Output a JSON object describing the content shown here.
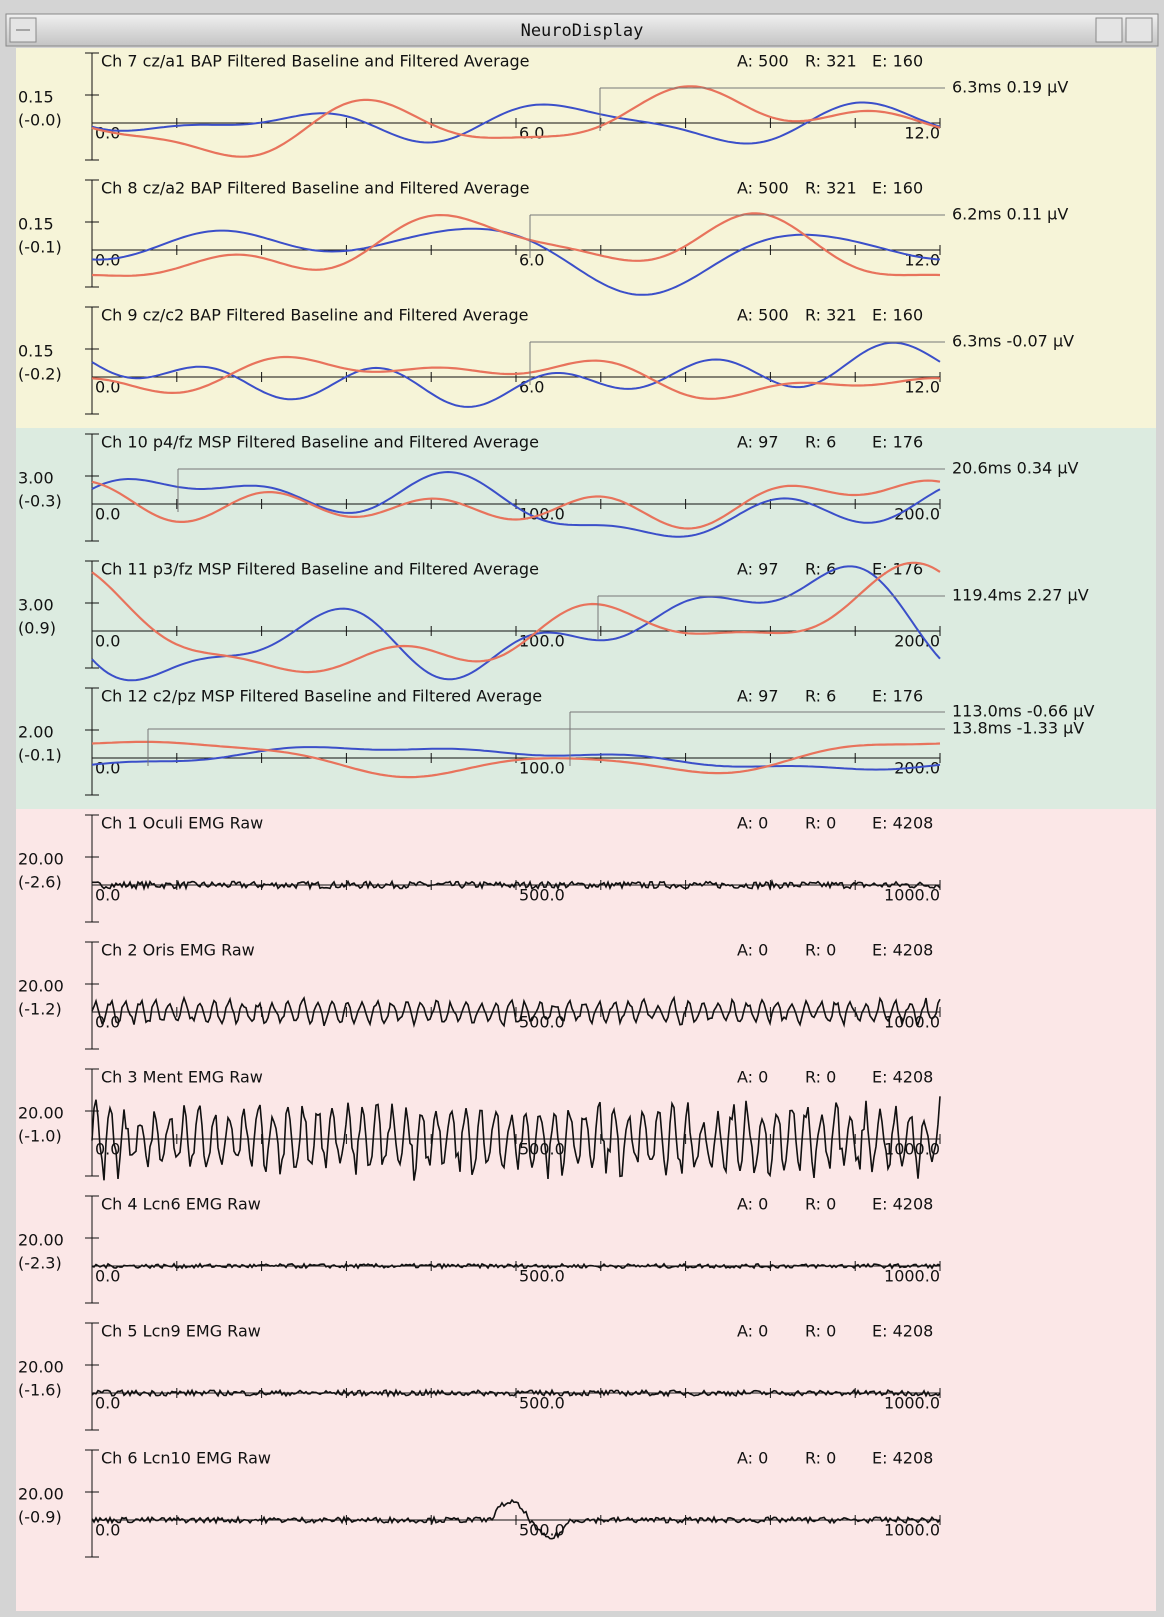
{
  "window": {
    "title": "NeuroDisplay"
  },
  "channels": [
    {
      "title": "Ch 7 cz/a1 BAP Filtered Baseline and Filtered Average",
      "stats": [
        "A: 500",
        "R: 321",
        "E: 160"
      ],
      "scale": "0.15",
      "offset": "(-0.0)",
      "x_labels": [
        "0.0",
        "6.0",
        "12.0"
      ],
      "cursors": [
        "6.3ms  0.19 µV"
      ]
    },
    {
      "title": "Ch 8 cz/a2 BAP Filtered Baseline and Filtered Average",
      "stats": [
        "A: 500",
        "R: 321",
        "E: 160"
      ],
      "scale": "0.15",
      "offset": "(-0.1)",
      "x_labels": [
        "0.0",
        "6.0",
        "12.0"
      ],
      "cursors": [
        "6.2ms  0.11 µV"
      ]
    },
    {
      "title": "Ch 9 cz/c2 BAP Filtered Baseline and Filtered Average",
      "stats": [
        "A: 500",
        "R: 321",
        "E: 160"
      ],
      "scale": "0.15",
      "offset": "(-0.2)",
      "x_labels": [
        "0.0",
        "6.0",
        "12.0"
      ],
      "cursors": [
        "6.3ms  -0.07 µV"
      ]
    },
    {
      "title": "Ch 10 p4/fz MSP Filtered Baseline and Filtered Average",
      "stats": [
        "A: 97",
        "R: 6",
        "E: 176"
      ],
      "scale": "3.00",
      "offset": "(-0.3)",
      "x_labels": [
        "0.0",
        "100.0",
        "200.0"
      ],
      "cursors": [
        "20.6ms  0.34 µV"
      ]
    },
    {
      "title": "Ch 11 p3/fz MSP Filtered Baseline and Filtered Average",
      "stats": [
        "A: 97",
        "R: 6",
        "E: 176"
      ],
      "scale": "3.00",
      "offset": "(0.9)",
      "x_labels": [
        "0.0",
        "100.0",
        "200.0"
      ],
      "cursors": [
        "119.4ms  2.27  µV"
      ]
    },
    {
      "title": "Ch 12 c2/pz MSP Filtered Baseline and Filtered Average",
      "stats": [
        "A: 97",
        "R: 6",
        "E: 176"
      ],
      "scale": "2.00",
      "offset": "(-0.1)",
      "x_labels": [
        "0.0",
        "100.0",
        "200.0"
      ],
      "cursors": [
        "113.0ms  -0.66 µV",
        "13.8ms  -1.33 µV"
      ]
    },
    {
      "title": "Ch 1 Oculi EMG Raw",
      "stats": [
        "A: 0",
        "R: 0",
        "E: 4208"
      ],
      "scale": "20.00",
      "offset": "(-2.6)",
      "x_labels": [
        "0.0",
        "500.0",
        "1000.0"
      ]
    },
    {
      "title": "Ch 2 Oris EMG Raw",
      "stats": [
        "A: 0",
        "R: 0",
        "E: 4208"
      ],
      "scale": "20.00",
      "offset": "(-1.2)",
      "x_labels": [
        "0.0",
        "500.0",
        "1000.0"
      ]
    },
    {
      "title": "Ch 3 Ment EMG Raw",
      "stats": [
        "A: 0",
        "R: 0",
        "E: 4208"
      ],
      "scale": "20.00",
      "offset": "(-1.0)",
      "x_labels": [
        "0.0",
        "500.0",
        "1000.0"
      ]
    },
    {
      "title": "Ch 4 Lcn6 EMG Raw",
      "stats": [
        "A: 0",
        "R: 0",
        "E: 4208"
      ],
      "scale": "20.00",
      "offset": "(-2.3)",
      "x_labels": [
        "0.0",
        "500.0",
        "1000.0"
      ]
    },
    {
      "title": "Ch 5 Lcn9 EMG Raw",
      "stats": [
        "A: 0",
        "R: 0",
        "E: 4208"
      ],
      "scale": "20.00",
      "offset": "(-1.6)",
      "x_labels": [
        "0.0",
        "500.0",
        "1000.0"
      ]
    },
    {
      "title": "Ch 6 Lcn10 EMG Raw",
      "stats": [
        "A: 0",
        "R: 0",
        "E: 4208"
      ],
      "scale": "20.00",
      "offset": "(-0.9)",
      "x_labels": [
        "0.0",
        "500.0",
        "1000.0"
      ]
    }
  ]
}
